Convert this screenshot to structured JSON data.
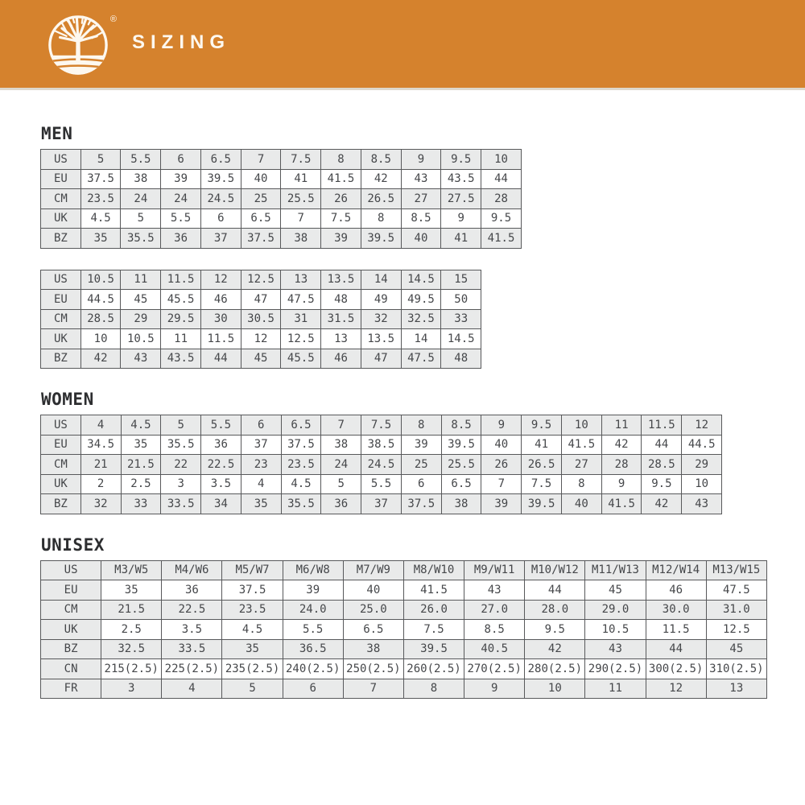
{
  "header": {
    "title": "SIZING",
    "registered_mark": "®",
    "logo_icon": "timberland-tree-icon",
    "accent_color": "#D5822D",
    "text_color": "#FFFFFF"
  },
  "colors": {
    "row_shaded": "#E9EAEA",
    "row_plain": "#FFFFFF",
    "table_border": "#58595B",
    "cell_text": "#45474A",
    "heading_text": "#2D2E30"
  },
  "sections": [
    {
      "name": "MEN",
      "tables": [
        {
          "rows": [
            {
              "label": "US",
              "values": [
                "5",
                "5.5",
                "6",
                "6.5",
                "7",
                "7.5",
                "8",
                "8.5",
                "9",
                "9.5",
                "10"
              ]
            },
            {
              "label": "EU",
              "values": [
                "37.5",
                "38",
                "39",
                "39.5",
                "40",
                "41",
                "41.5",
                "42",
                "43",
                "43.5",
                "44"
              ]
            },
            {
              "label": "CM",
              "values": [
                "23.5",
                "24",
                "24",
                "24.5",
                "25",
                "25.5",
                "26",
                "26.5",
                "27",
                "27.5",
                "28"
              ]
            },
            {
              "label": "UK",
              "values": [
                "4.5",
                "5",
                "5.5",
                "6",
                "6.5",
                "7",
                "7.5",
                "8",
                "8.5",
                "9",
                "9.5"
              ]
            },
            {
              "label": "BZ",
              "values": [
                "35",
                "35.5",
                "36",
                "37",
                "37.5",
                "38",
                "39",
                "39.5",
                "40",
                "41",
                "41.5"
              ]
            }
          ]
        },
        {
          "rows": [
            {
              "label": "US",
              "values": [
                "10.5",
                "11",
                "11.5",
                "12",
                "12.5",
                "13",
                "13.5",
                "14",
                "14.5",
                "15"
              ]
            },
            {
              "label": "EU",
              "values": [
                "44.5",
                "45",
                "45.5",
                "46",
                "47",
                "47.5",
                "48",
                "49",
                "49.5",
                "50"
              ]
            },
            {
              "label": "CM",
              "values": [
                "28.5",
                "29",
                "29.5",
                "30",
                "30.5",
                "31",
                "31.5",
                "32",
                "32.5",
                "33"
              ]
            },
            {
              "label": "UK",
              "values": [
                "10",
                "10.5",
                "11",
                "11.5",
                "12",
                "12.5",
                "13",
                "13.5",
                "14",
                "14.5"
              ]
            },
            {
              "label": "BZ",
              "values": [
                "42",
                "43",
                "43.5",
                "44",
                "45",
                "45.5",
                "46",
                "47",
                "47.5",
                "48"
              ]
            }
          ]
        }
      ]
    },
    {
      "name": "WOMEN",
      "tables": [
        {
          "rows": [
            {
              "label": "US",
              "values": [
                "4",
                "4.5",
                "5",
                "5.5",
                "6",
                "6.5",
                "7",
                "7.5",
                "8",
                "8.5",
                "9",
                "9.5",
                "10",
                "11",
                "11.5",
                "12"
              ]
            },
            {
              "label": "EU",
              "values": [
                "34.5",
                "35",
                "35.5",
                "36",
                "37",
                "37.5",
                "38",
                "38.5",
                "39",
                "39.5",
                "40",
                "41",
                "41.5",
                "42",
                "44",
                "44.5"
              ]
            },
            {
              "label": "CM",
              "values": [
                "21",
                "21.5",
                "22",
                "22.5",
                "23",
                "23.5",
                "24",
                "24.5",
                "25",
                "25.5",
                "26",
                "26.5",
                "27",
                "28",
                "28.5",
                "29"
              ]
            },
            {
              "label": "UK",
              "values": [
                "2",
                "2.5",
                "3",
                "3.5",
                "4",
                "4.5",
                "5",
                "5.5",
                "6",
                "6.5",
                "7",
                "7.5",
                "8",
                "9",
                "9.5",
                "10"
              ]
            },
            {
              "label": "BZ",
              "values": [
                "32",
                "33",
                "33.5",
                "34",
                "35",
                "35.5",
                "36",
                "37",
                "37.5",
                "38",
                "39",
                "39.5",
                "40",
                "41.5",
                "42",
                "43"
              ]
            }
          ]
        }
      ]
    },
    {
      "name": "UNISEX",
      "tables": [
        {
          "rows": [
            {
              "label": "US",
              "values": [
                "M3/W5",
                "M4/W6",
                "M5/W7",
                "M6/W8",
                "M7/W9",
                "M8/W10",
                "M9/W11",
                "M10/W12",
                "M11/W13",
                "M12/W14",
                "M13/W15"
              ]
            },
            {
              "label": "EU",
              "values": [
                "35",
                "36",
                "37.5",
                "39",
                "40",
                "41.5",
                "43",
                "44",
                "45",
                "46",
                "47.5"
              ]
            },
            {
              "label": "CM",
              "values": [
                "21.5",
                "22.5",
                "23.5",
                "24.0",
                "25.0",
                "26.0",
                "27.0",
                "28.0",
                "29.0",
                "30.0",
                "31.0"
              ]
            },
            {
              "label": "UK",
              "values": [
                "2.5",
                "3.5",
                "4.5",
                "5.5",
                "6.5",
                "7.5",
                "8.5",
                "9.5",
                "10.5",
                "11.5",
                "12.5"
              ]
            },
            {
              "label": "BZ",
              "values": [
                "32.5",
                "33.5",
                "35",
                "36.5",
                "38",
                "39.5",
                "40.5",
                "42",
                "43",
                "44",
                "45"
              ]
            },
            {
              "label": "CN",
              "values": [
                "215(2.5)",
                "225(2.5)",
                "235(2.5)",
                "240(2.5)",
                "250(2.5)",
                "260(2.5)",
                "270(2.5)",
                "280(2.5)",
                "290(2.5)",
                "300(2.5)",
                "310(2.5)"
              ]
            },
            {
              "label": "FR",
              "values": [
                "3",
                "4",
                "5",
                "6",
                "7",
                "8",
                "9",
                "10",
                "11",
                "12",
                "13"
              ]
            }
          ]
        }
      ]
    }
  ]
}
